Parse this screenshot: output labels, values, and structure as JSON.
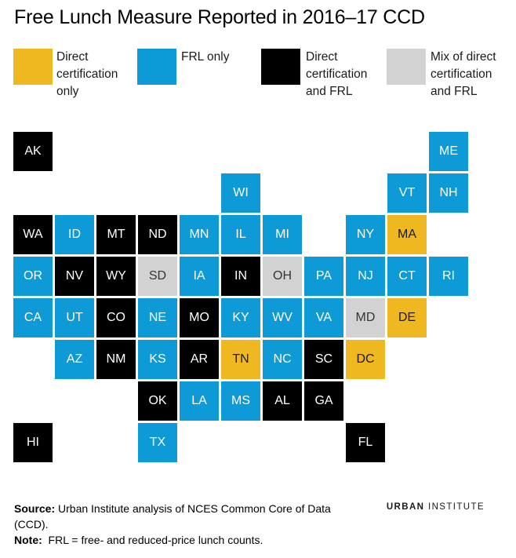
{
  "title": "Free Lunch Measure Reported in 2016–17 CCD",
  "colors": {
    "direct": "#f0b820",
    "frl": "#0e9ad6",
    "both": "#000000",
    "mix": "#d2d2d2"
  },
  "legend": [
    {
      "key": "direct",
      "label": "Direct\ncertification\nonly"
    },
    {
      "key": "frl",
      "label": "FRL only"
    },
    {
      "key": "both",
      "label": "Direct\ncertification\nand FRL"
    },
    {
      "key": "mix",
      "label": "Mix of direct\ncertification\nand FRL"
    }
  ],
  "states": [
    {
      "abbr": "AK",
      "cat": "both"
    },
    {
      "abbr": "ME",
      "cat": "frl"
    },
    {
      "abbr": "WI",
      "cat": "frl"
    },
    {
      "abbr": "VT",
      "cat": "frl"
    },
    {
      "abbr": "NH",
      "cat": "frl"
    },
    {
      "abbr": "WA",
      "cat": "both"
    },
    {
      "abbr": "ID",
      "cat": "frl"
    },
    {
      "abbr": "MT",
      "cat": "both"
    },
    {
      "abbr": "ND",
      "cat": "both"
    },
    {
      "abbr": "MN",
      "cat": "frl"
    },
    {
      "abbr": "IL",
      "cat": "frl"
    },
    {
      "abbr": "MI",
      "cat": "frl"
    },
    {
      "abbr": "NY",
      "cat": "frl"
    },
    {
      "abbr": "MA",
      "cat": "direct"
    },
    {
      "abbr": "OR",
      "cat": "frl"
    },
    {
      "abbr": "NV",
      "cat": "both"
    },
    {
      "abbr": "WY",
      "cat": "both"
    },
    {
      "abbr": "SD",
      "cat": "mix"
    },
    {
      "abbr": "IA",
      "cat": "frl"
    },
    {
      "abbr": "IN",
      "cat": "both"
    },
    {
      "abbr": "OH",
      "cat": "mix"
    },
    {
      "abbr": "PA",
      "cat": "frl"
    },
    {
      "abbr": "NJ",
      "cat": "frl"
    },
    {
      "abbr": "CT",
      "cat": "frl"
    },
    {
      "abbr": "RI",
      "cat": "frl"
    },
    {
      "abbr": "CA",
      "cat": "frl"
    },
    {
      "abbr": "UT",
      "cat": "frl"
    },
    {
      "abbr": "CO",
      "cat": "both"
    },
    {
      "abbr": "NE",
      "cat": "frl"
    },
    {
      "abbr": "MO",
      "cat": "both"
    },
    {
      "abbr": "KY",
      "cat": "frl"
    },
    {
      "abbr": "WV",
      "cat": "frl"
    },
    {
      "abbr": "VA",
      "cat": "frl"
    },
    {
      "abbr": "MD",
      "cat": "mix"
    },
    {
      "abbr": "DE",
      "cat": "direct"
    },
    {
      "abbr": "AZ",
      "cat": "frl"
    },
    {
      "abbr": "NM",
      "cat": "both"
    },
    {
      "abbr": "KS",
      "cat": "frl"
    },
    {
      "abbr": "AR",
      "cat": "both"
    },
    {
      "abbr": "TN",
      "cat": "direct"
    },
    {
      "abbr": "NC",
      "cat": "frl"
    },
    {
      "abbr": "SC",
      "cat": "both"
    },
    {
      "abbr": "DC",
      "cat": "direct"
    },
    {
      "abbr": "OK",
      "cat": "both"
    },
    {
      "abbr": "LA",
      "cat": "frl"
    },
    {
      "abbr": "MS",
      "cat": "frl"
    },
    {
      "abbr": "AL",
      "cat": "both"
    },
    {
      "abbr": "GA",
      "cat": "both"
    },
    {
      "abbr": "HI",
      "cat": "both"
    },
    {
      "abbr": "TX",
      "cat": "frl"
    },
    {
      "abbr": "FL",
      "cat": "both"
    }
  ],
  "footer": {
    "source_label": "Source:",
    "source_text": " Urban Institute analysis of NCES Common Core of Data (CCD).",
    "note_label": "Note:",
    "note_text": "  FRL = free- and reduced-price lunch counts."
  },
  "brand": {
    "part1": "URBAN",
    "part2": " INSTITUTE"
  }
}
